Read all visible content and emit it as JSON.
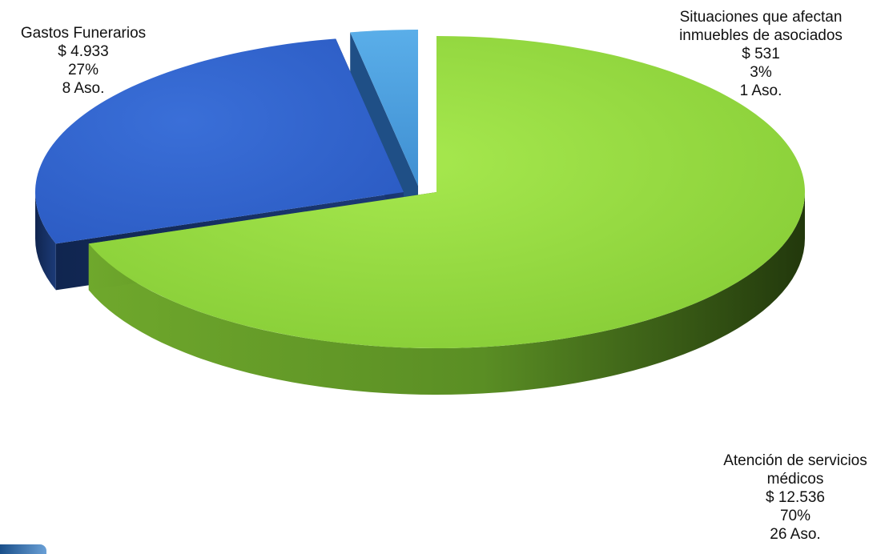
{
  "chart_data": {
    "type": "pie",
    "title": "",
    "slices": [
      {
        "label_lines": [
          "Atención de servicios",
          "médicos"
        ],
        "amount": "$ 12.536",
        "value": 12536,
        "percent": "70%",
        "pct": 70,
        "members": "26 Aso.",
        "color": "#8fd43c"
      },
      {
        "label_lines": [
          "Gastos Funerarios"
        ],
        "amount": "$ 4.933",
        "value": 4933,
        "percent": "27%",
        "pct": 27,
        "members": "8 Aso.",
        "color": "#3567cf"
      },
      {
        "label_lines": [
          "Situaciones que afectan",
          "inmuebles  de asociados"
        ],
        "amount": "$ 531",
        "value": 531,
        "percent": "3%",
        "pct": 3,
        "members": "1 Aso.",
        "color": "#4fa0e0"
      }
    ],
    "legend": "none"
  }
}
